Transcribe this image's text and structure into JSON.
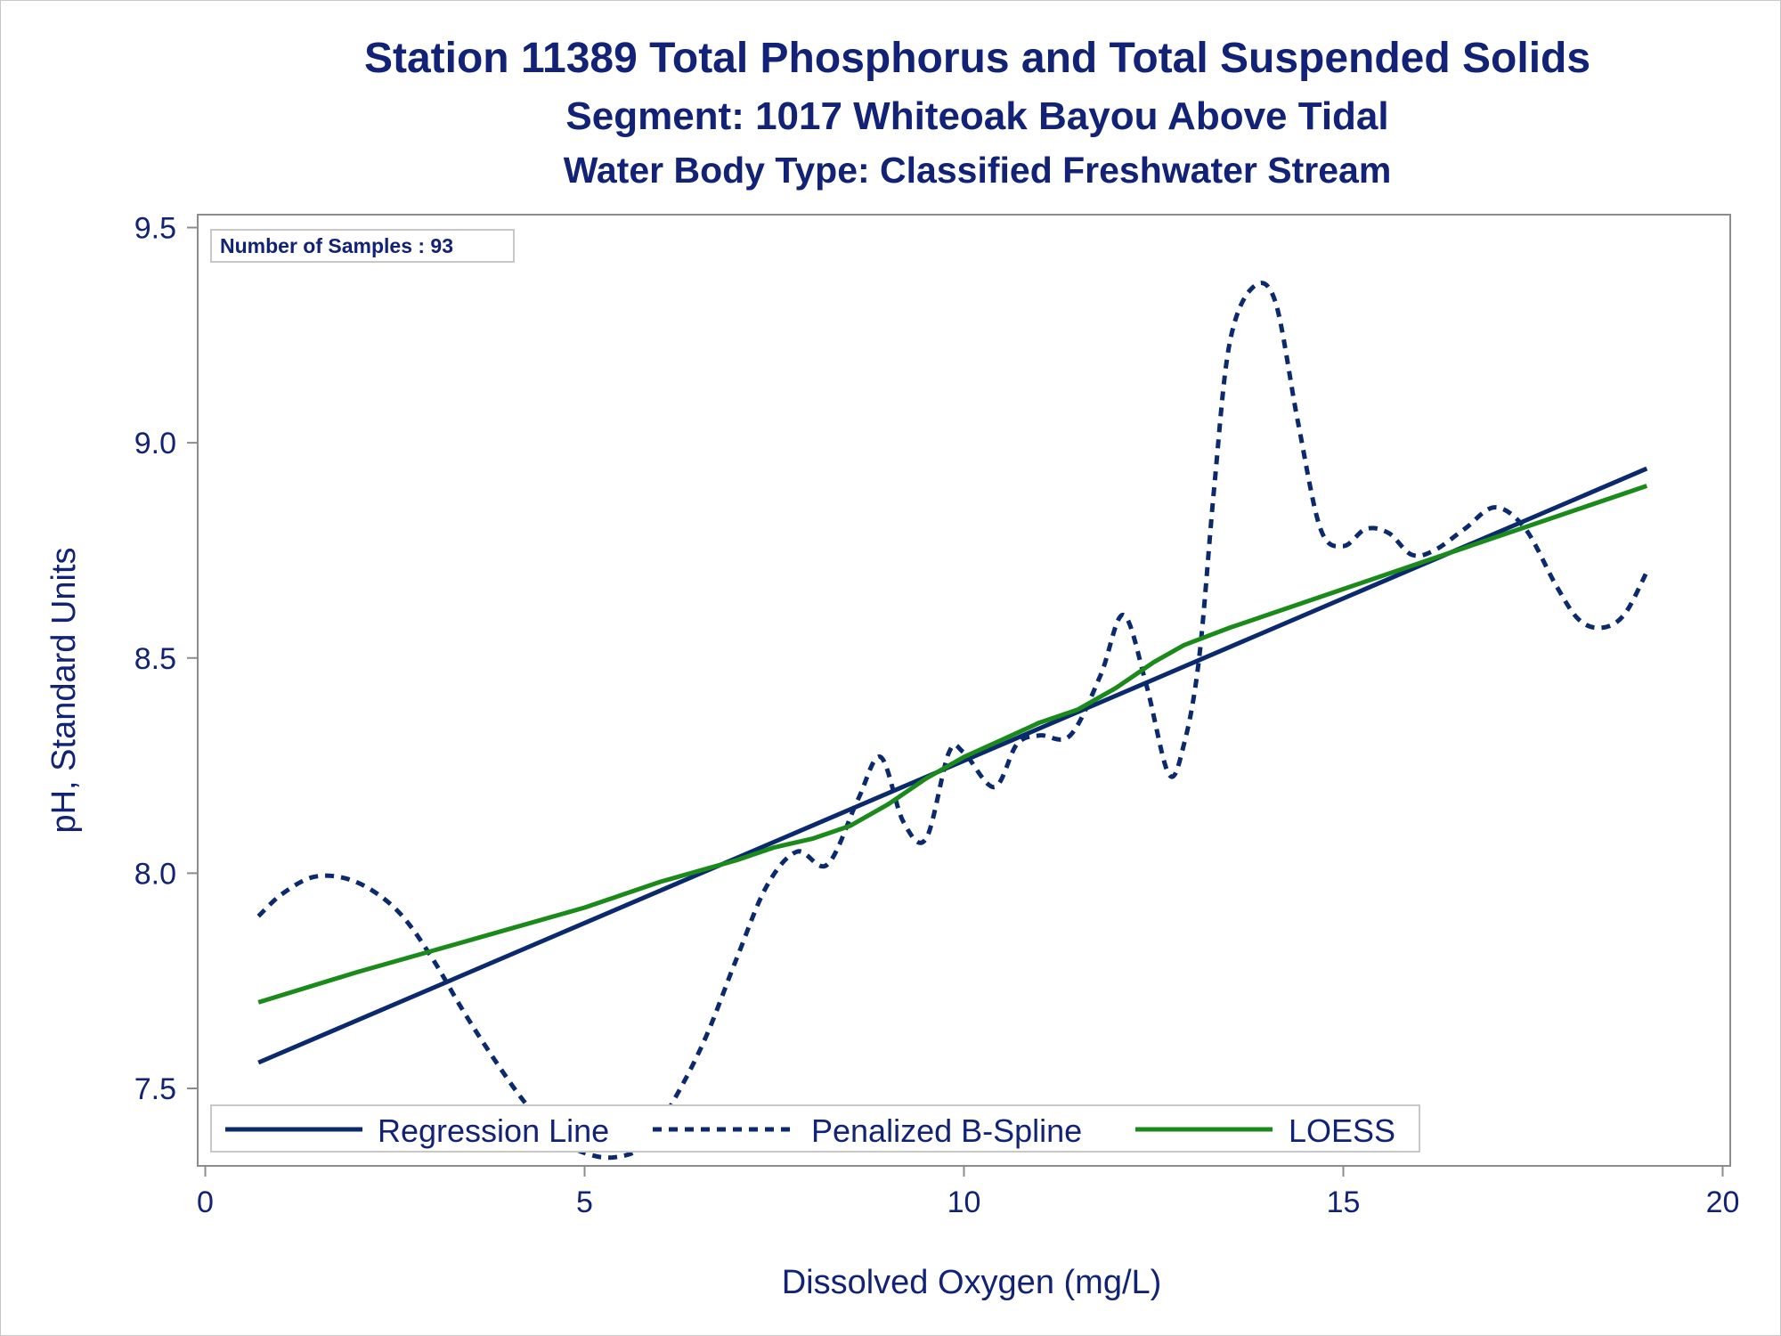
{
  "title": "Station 11389  Total Phosphorus and Total Suspended Solids",
  "subtitle": "Segment: 1017  Whiteoak Bayou Above Tidal",
  "subtitle2": "Water Body Type: Classified Freshwater Stream",
  "inset_label": "Number of Samples : 93",
  "colors": {
    "text": "#112277",
    "regression": "#0b2a6e",
    "spline": "#0b2a6e",
    "loess": "#1a8a1a",
    "frame": "#8c8c8c"
  },
  "chart_data": {
    "type": "line",
    "title": "Station 11389  Total Phosphorus and Total Suspended Solids",
    "xlabel": "Dissolved Oxygen (mg/L)",
    "ylabel": "pH, Standard Units",
    "xlim": [
      -0.1,
      20.1
    ],
    "ylim": [
      7.32,
      9.53
    ],
    "xticks": [
      0,
      5,
      10,
      15,
      20
    ],
    "yticks": [
      7.5,
      8.0,
      8.5,
      9.0,
      9.5
    ],
    "xtick_labels": [
      "0",
      "5",
      "10",
      "15",
      "20"
    ],
    "ytick_labels": [
      "7.5",
      "8.0",
      "8.5",
      "9.0",
      "9.5"
    ],
    "grid": false,
    "legend_position": "bottom-left inside",
    "series": [
      {
        "name": "Regression Line",
        "style": "solid",
        "x": [
          0.7,
          19.0
        ],
        "y": [
          7.56,
          8.94
        ]
      },
      {
        "name": "Penalized B-Spline",
        "style": "dashed",
        "x": [
          0.7,
          1.0,
          1.4,
          1.8,
          2.2,
          2.6,
          3.0,
          3.4,
          3.8,
          4.2,
          4.6,
          5.0,
          5.4,
          5.8,
          6.2,
          6.6,
          7.0,
          7.4,
          7.8,
          8.2,
          8.6,
          8.9,
          9.2,
          9.5,
          9.8,
          10.0,
          10.4,
          10.7,
          11.0,
          11.4,
          11.8,
          12.1,
          12.4,
          12.7,
          12.9,
          13.1,
          13.3,
          13.5,
          13.8,
          14.1,
          14.4,
          14.7,
          15.0,
          15.3,
          15.6,
          15.9,
          16.2,
          16.6,
          17.0,
          17.4,
          17.8,
          18.1,
          18.4,
          18.7,
          19.0
        ],
        "y": [
          7.9,
          7.95,
          7.99,
          7.99,
          7.96,
          7.9,
          7.8,
          7.68,
          7.57,
          7.47,
          7.39,
          7.35,
          7.34,
          7.37,
          7.48,
          7.62,
          7.8,
          7.97,
          8.05,
          8.02,
          8.17,
          8.27,
          8.12,
          8.08,
          8.28,
          8.28,
          8.2,
          8.3,
          8.32,
          8.32,
          8.46,
          8.6,
          8.44,
          8.23,
          8.3,
          8.5,
          8.9,
          9.23,
          9.36,
          9.33,
          9.05,
          8.8,
          8.76,
          8.8,
          8.79,
          8.74,
          8.75,
          8.8,
          8.85,
          8.8,
          8.67,
          8.59,
          8.57,
          8.6,
          8.7
        ]
      },
      {
        "name": "LOESS",
        "style": "solid",
        "x": [
          0.7,
          2.0,
          3.0,
          4.0,
          5.0,
          6.0,
          7.0,
          7.5,
          8.0,
          8.5,
          9.0,
          9.5,
          10.0,
          10.5,
          11.0,
          11.5,
          12.0,
          12.5,
          12.9,
          13.2,
          13.5,
          14.0,
          15.0,
          16.0,
          17.0,
          18.0,
          19.0
        ],
        "y": [
          7.7,
          7.77,
          7.82,
          7.87,
          7.92,
          7.98,
          8.03,
          8.06,
          8.08,
          8.11,
          8.16,
          8.22,
          8.27,
          8.31,
          8.35,
          8.38,
          8.43,
          8.49,
          8.53,
          8.55,
          8.57,
          8.6,
          8.66,
          8.72,
          8.78,
          8.84,
          8.9
        ]
      }
    ]
  }
}
